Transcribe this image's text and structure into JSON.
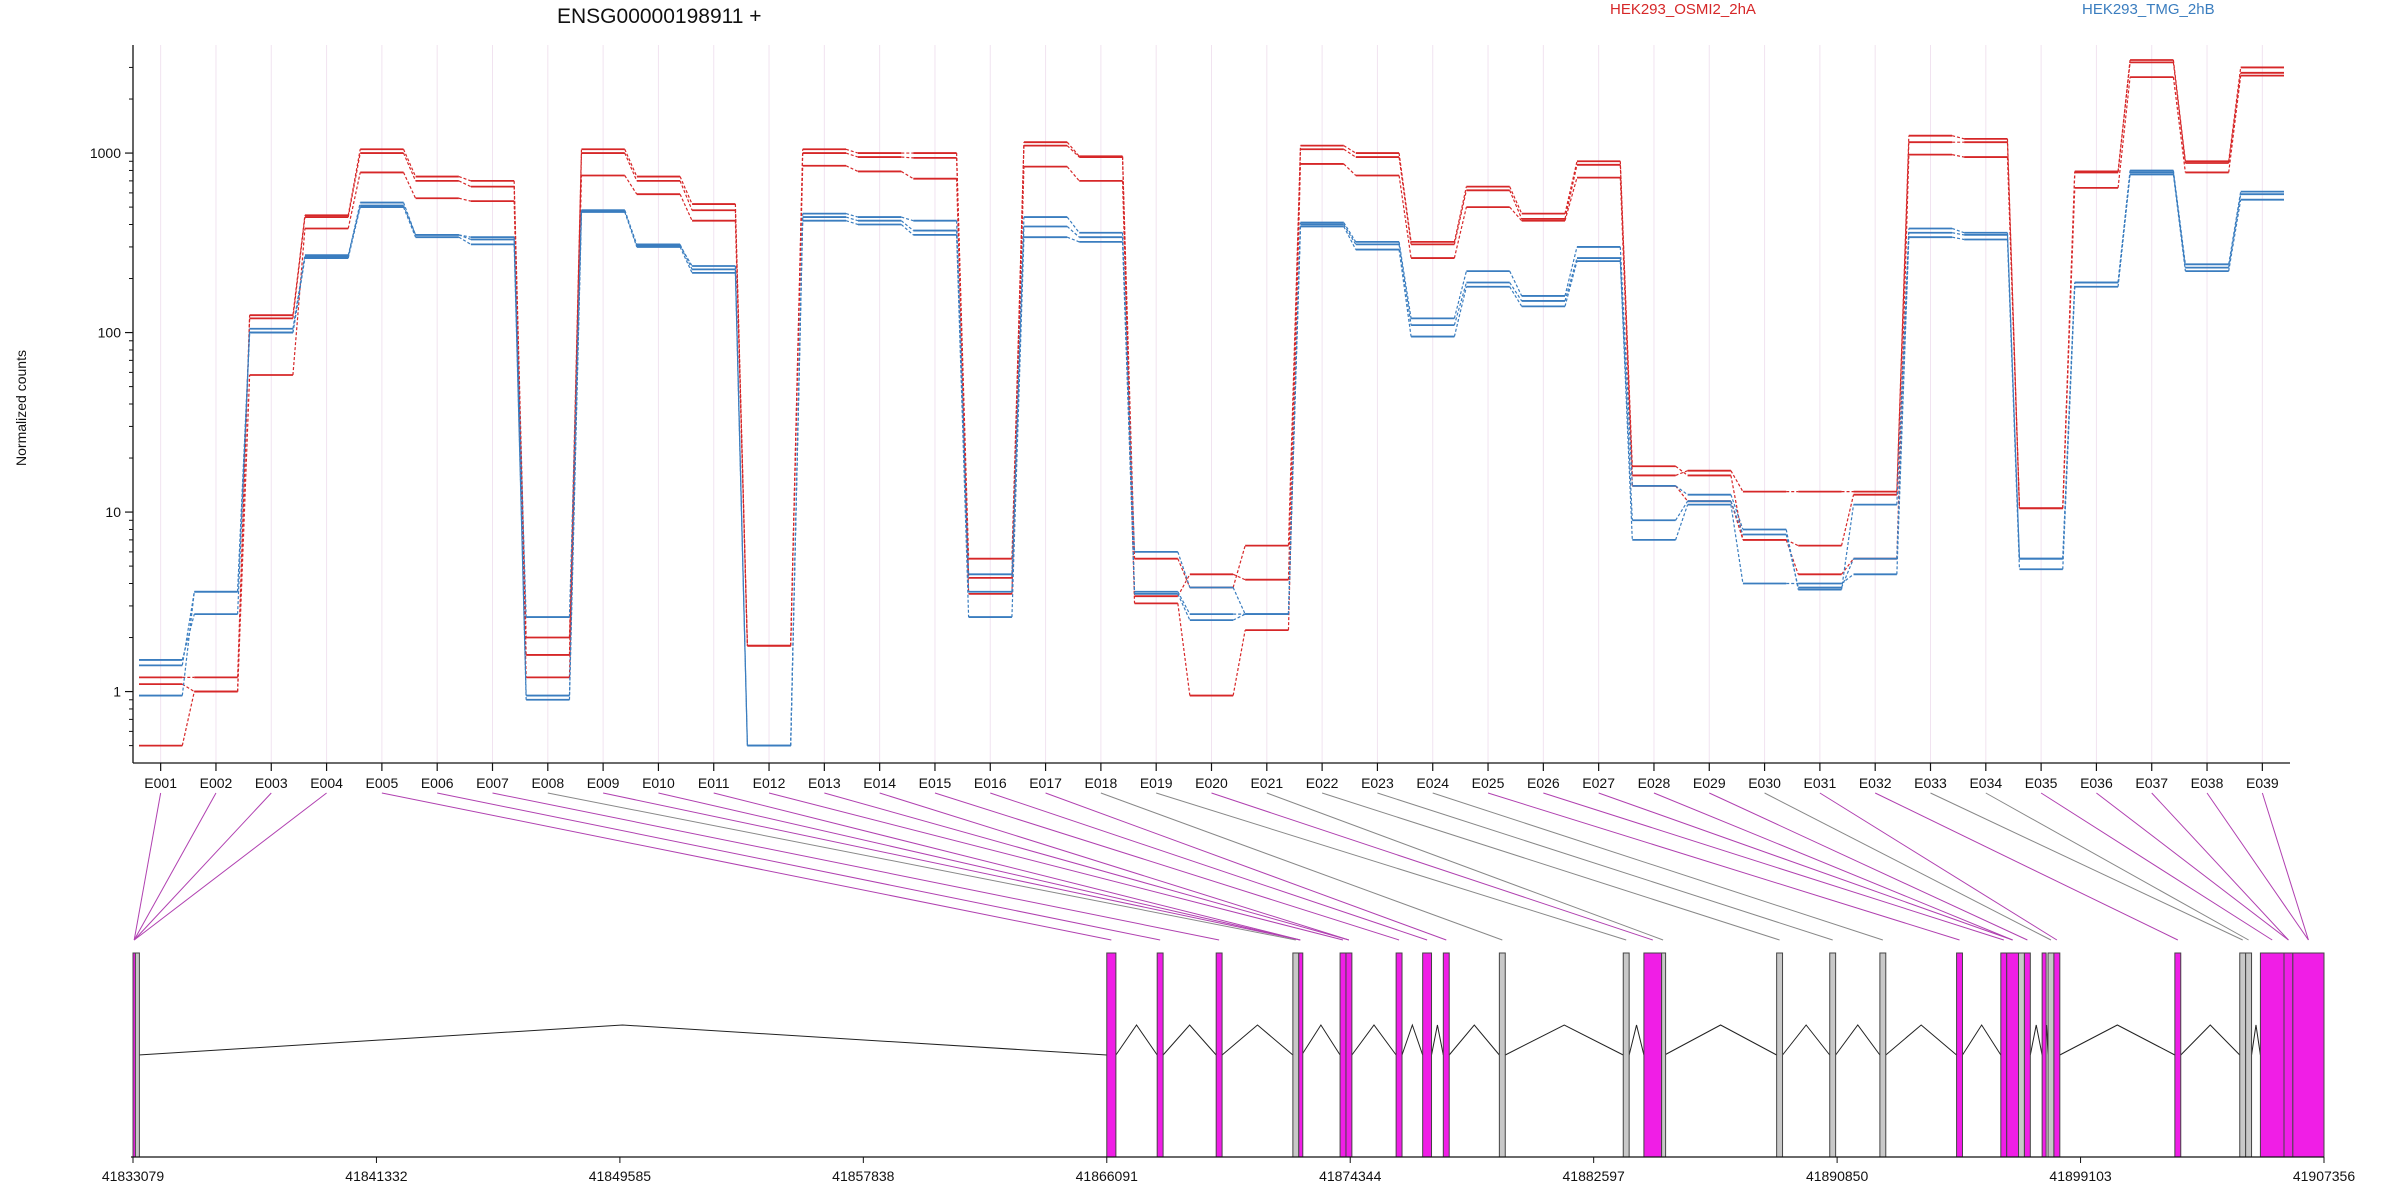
{
  "chart_data": {
    "type": "line",
    "title": "ENSG00000198911 +",
    "ylabel": "Normalized counts",
    "yscale": "log",
    "ylim": [
      0.4,
      4000
    ],
    "yticks": [
      1,
      10,
      100,
      1000
    ],
    "ytick_labels": [
      "1",
      "10",
      "100",
      "1000"
    ],
    "colors": {
      "treated": "#d62728",
      "control": "#3a7dbf",
      "exon_diff": "#f01ee6",
      "exon_same": "#c8c8c8",
      "link_diff": "#b040b0",
      "link_same": "#888888"
    },
    "legend": [
      {
        "label": "HEK293_OSMI2_2hA",
        "color": "#d62728"
      },
      {
        "label": "HEK293_TMG_2hB",
        "color": "#3a7dbf"
      }
    ],
    "categories": [
      "E001",
      "E002",
      "E003",
      "E004",
      "E005",
      "E006",
      "E007",
      "E008",
      "E009",
      "E010",
      "E011",
      "E012",
      "E013",
      "E014",
      "E015",
      "E016",
      "E017",
      "E018",
      "E019",
      "E020",
      "E021",
      "E022",
      "E023",
      "E024",
      "E025",
      "E026",
      "E027",
      "E028",
      "E029",
      "E030",
      "E031",
      "E032",
      "E033",
      "E034",
      "E035",
      "E036",
      "E037",
      "E038",
      "E039"
    ],
    "series": [
      {
        "group": "treated",
        "values": [
          0.5,
          1.0,
          58,
          380,
          780,
          560,
          540,
          1.2,
          750,
          590,
          420,
          1.8,
          850,
          790,
          720,
          3.5,
          840,
          700,
          3.1,
          0.95,
          2.2,
          870,
          750,
          260,
          500,
          420,
          730,
          14,
          11.5,
          7.0,
          4.5,
          5.5,
          980,
          950,
          10.5,
          640,
          2650,
          780,
          2700
        ]
      },
      {
        "group": "treated",
        "values": [
          1.1,
          1.0,
          120,
          440,
          1000,
          700,
          650,
          1.6,
          1000,
          700,
          480,
          1.8,
          1000,
          950,
          940,
          5.5,
          1100,
          950,
          3.4,
          4.5,
          4.2,
          1050,
          950,
          310,
          620,
          430,
          860,
          18,
          16,
          7.0,
          6.5,
          12.5,
          1150,
          1150,
          10.5,
          790,
          3200,
          880,
          2800
        ]
      },
      {
        "group": "treated",
        "values": [
          1.2,
          1.2,
          125,
          450,
          1050,
          740,
          700,
          2.0,
          1050,
          740,
          520,
          1.8,
          1050,
          1000,
          1000,
          4.3,
          1150,
          960,
          5.5,
          3.8,
          6.5,
          1100,
          1000,
          320,
          650,
          460,
          900,
          16,
          17,
          13,
          13,
          13,
          1250,
          1200,
          10.5,
          780,
          3300,
          900,
          3000
        ]
      },
      {
        "group": "control",
        "values": [
          0.95,
          3.6,
          100,
          260,
          500,
          340,
          310,
          0.95,
          470,
          300,
          215,
          0.5,
          420,
          400,
          350,
          2.6,
          340,
          320,
          3.6,
          2.7,
          2.7,
          390,
          290,
          95,
          180,
          140,
          250,
          7.0,
          11,
          4.0,
          4.0,
          4.5,
          340,
          330,
          4.8,
          180,
          760,
          220,
          550
        ]
      },
      {
        "group": "control",
        "values": [
          1.5,
          2.7,
          105,
          270,
          510,
          350,
          330,
          2.6,
          480,
          310,
          225,
          0.5,
          440,
          420,
          370,
          3.6,
          390,
          340,
          3.5,
          2.5,
          2.7,
          400,
          310,
          110,
          190,
          150,
          260,
          9.0,
          11.5,
          7.5,
          3.8,
          5.5,
          360,
          350,
          5.5,
          190,
          780,
          230,
          590
        ]
      },
      {
        "group": "control",
        "values": [
          1.4,
          3.6,
          100,
          265,
          530,
          350,
          340,
          0.9,
          480,
          305,
          235,
          0.5,
          460,
          440,
          420,
          4.5,
          440,
          360,
          6.0,
          3.8,
          2.7,
          410,
          320,
          120,
          220,
          160,
          300,
          14,
          12.5,
          8.0,
          3.7,
          11,
          380,
          360,
          5.5,
          190,
          800,
          240,
          610
        ]
      }
    ],
    "genome_coords": [
      41833079,
      41841332,
      41849585,
      41857838,
      41866091,
      41874344,
      41882597,
      41890850,
      41899103,
      41907356
    ],
    "exon_coords": [
      [
        41833079,
        41833160,
        true
      ],
      [
        41833160,
        41833260,
        false
      ],
      [
        41866091,
        41866400,
        true
      ],
      [
        41867800,
        41868000,
        true
      ],
      [
        41869800,
        41870000,
        true
      ],
      [
        41872400,
        41872600,
        false
      ],
      [
        41872600,
        41872700,
        true
      ],
      [
        41874000,
        41874200,
        true
      ],
      [
        41874200,
        41874400,
        true
      ],
      [
        41875900,
        41876100,
        true
      ],
      [
        41876800,
        41877100,
        true
      ],
      [
        41877500,
        41877700,
        true
      ],
      [
        41879400,
        41879600,
        false
      ],
      [
        41883600,
        41883800,
        false
      ],
      [
        41884300,
        41884900,
        true
      ],
      [
        41884900,
        41885000,
        false
      ],
      [
        41888800,
        41889000,
        false
      ],
      [
        41890600,
        41890800,
        false
      ],
      [
        41892300,
        41892500,
        false
      ],
      [
        41894900,
        41895100,
        true
      ],
      [
        41896400,
        41896600,
        true
      ],
      [
        41896600,
        41897000,
        true
      ],
      [
        41897000,
        41897200,
        false
      ],
      [
        41897200,
        41897400,
        true
      ],
      [
        41897800,
        41897900,
        true
      ],
      [
        41898000,
        41898200,
        false
      ],
      [
        41898200,
        41898400,
        true
      ],
      [
        41902300,
        41902500,
        true
      ],
      [
        41904500,
        41904700,
        false
      ],
      [
        41904700,
        41904900,
        false
      ],
      [
        41905200,
        41906000,
        true
      ],
      [
        41906000,
        41906300,
        true
      ],
      [
        41906300,
        41907356,
        true
      ]
    ],
    "exon_links": [
      [
        0,
        0
      ],
      [
        1,
        0
      ],
      [
        2,
        0
      ],
      [
        3,
        0
      ],
      [
        4,
        2
      ],
      [
        5,
        3
      ],
      [
        6,
        4
      ],
      [
        7,
        5
      ],
      [
        8,
        6
      ],
      [
        9,
        6
      ],
      [
        10,
        6
      ],
      [
        11,
        7
      ],
      [
        12,
        8
      ],
      [
        13,
        8
      ],
      [
        14,
        9
      ],
      [
        15,
        10
      ],
      [
        16,
        11
      ],
      [
        17,
        12
      ],
      [
        18,
        13
      ],
      [
        19,
        14
      ],
      [
        20,
        15
      ],
      [
        21,
        16
      ],
      [
        22,
        17
      ],
      [
        23,
        18
      ],
      [
        24,
        19
      ],
      [
        25,
        20
      ],
      [
        26,
        21
      ],
      [
        27,
        21
      ],
      [
        28,
        23
      ],
      [
        29,
        25
      ],
      [
        30,
        26
      ],
      [
        31,
        27
      ],
      [
        32,
        28
      ],
      [
        33,
        29
      ],
      [
        34,
        30
      ],
      [
        35,
        31
      ],
      [
        36,
        31
      ],
      [
        37,
        32
      ],
      [
        38,
        32
      ]
    ]
  }
}
